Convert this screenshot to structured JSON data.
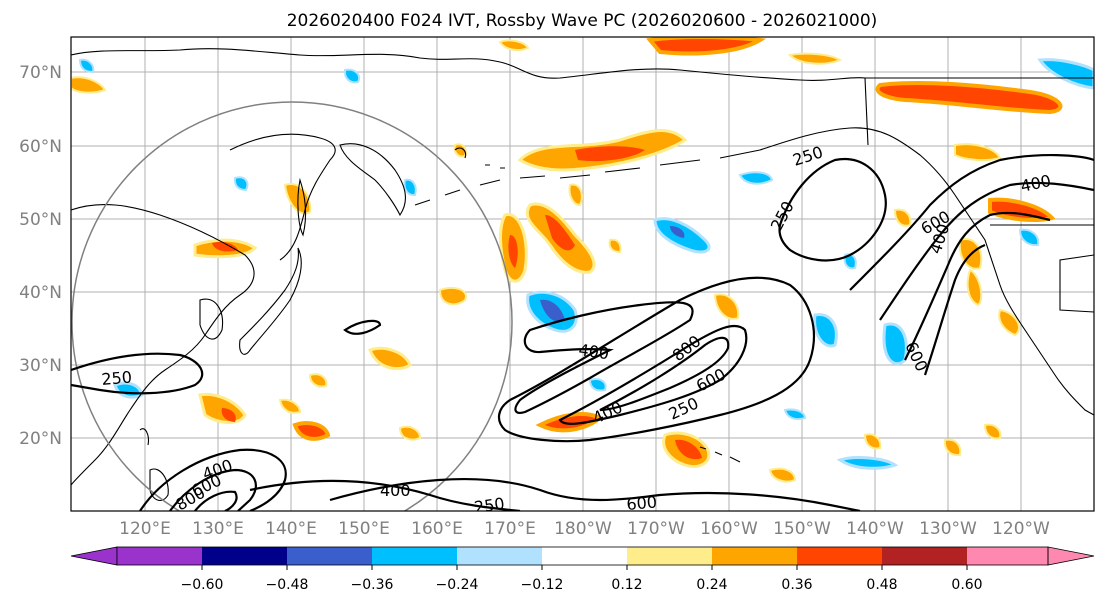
{
  "title": "2026020400 F024 IVT, Rossby Wave PC (2026020600 - 2026021000)",
  "lat_ticks": [
    "70°N",
    "60°N",
    "50°N",
    "40°N",
    "30°N",
    "20°N"
  ],
  "lon_ticks": [
    "120°E",
    "130°E",
    "140°E",
    "150°E",
    "160°E",
    "170°E",
    "180°W",
    "170°W",
    "160°W",
    "150°W",
    "140°W",
    "130°W",
    "120°W"
  ],
  "colorbar": {
    "colors": [
      "#9933cc",
      "#00008b",
      "#3a5fcd",
      "#00bfff",
      "#b0e2ff",
      "#ffffff",
      "#ffec8b",
      "#ffa500",
      "#ff4500",
      "#b22222",
      "#ff88b0"
    ],
    "ticks": [
      "−0.60",
      "−0.48",
      "−0.36",
      "−0.24",
      "−0.12",
      "0.12",
      "0.24",
      "0.36",
      "0.48",
      "0.60"
    ]
  },
  "contour_labels": [
    "250",
    "250",
    "250",
    "250",
    "250",
    "400",
    "400",
    "400",
    "400",
    "400",
    "600",
    "600",
    "600",
    "800",
    "600",
    "400",
    "600",
    "800"
  ],
  "colors": {
    "coast": "#000000",
    "grid": "#b0b0b0",
    "circle": "#808080"
  }
}
